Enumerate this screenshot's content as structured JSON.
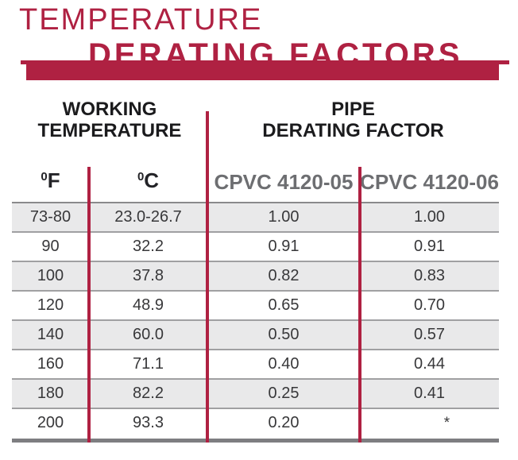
{
  "title": {
    "line1": "TEMPERATURE",
    "line2": "DERATING FACTORS"
  },
  "table": {
    "group_headers": {
      "left": {
        "line1": "WORKING",
        "line2": "TEMPERATURE"
      },
      "right": {
        "line1": "PIPE",
        "line2": "DERATING FACTOR"
      }
    },
    "columns": [
      {
        "sup": "0",
        "label": "F"
      },
      {
        "sup": "0",
        "label": "C"
      },
      {
        "label": "CPVC 4120-05"
      },
      {
        "label": "CPVC 4120-06"
      }
    ],
    "rows": [
      [
        "73-80",
        "23.0-26.7",
        "1.00",
        "1.00"
      ],
      [
        "90",
        "32.2",
        "0.91",
        "0.91"
      ],
      [
        "100",
        "37.8",
        "0.82",
        "0.83"
      ],
      [
        "120",
        "48.9",
        "0.65",
        "0.70"
      ],
      [
        "140",
        "60.0",
        "0.50",
        "0.57"
      ],
      [
        "160",
        "71.1",
        "0.40",
        "0.44"
      ],
      [
        "180",
        "82.2",
        "0.25",
        "0.41"
      ],
      [
        "200",
        "93.3",
        "0.20",
        "*"
      ]
    ]
  },
  "colors": {
    "accent_red": "#AF2142",
    "shaded_row": "#E9E9EA",
    "header_text": "#1B1B1D",
    "cpvc_label_gray": "#6D6E71",
    "row_separator": "#A0A0A2"
  }
}
